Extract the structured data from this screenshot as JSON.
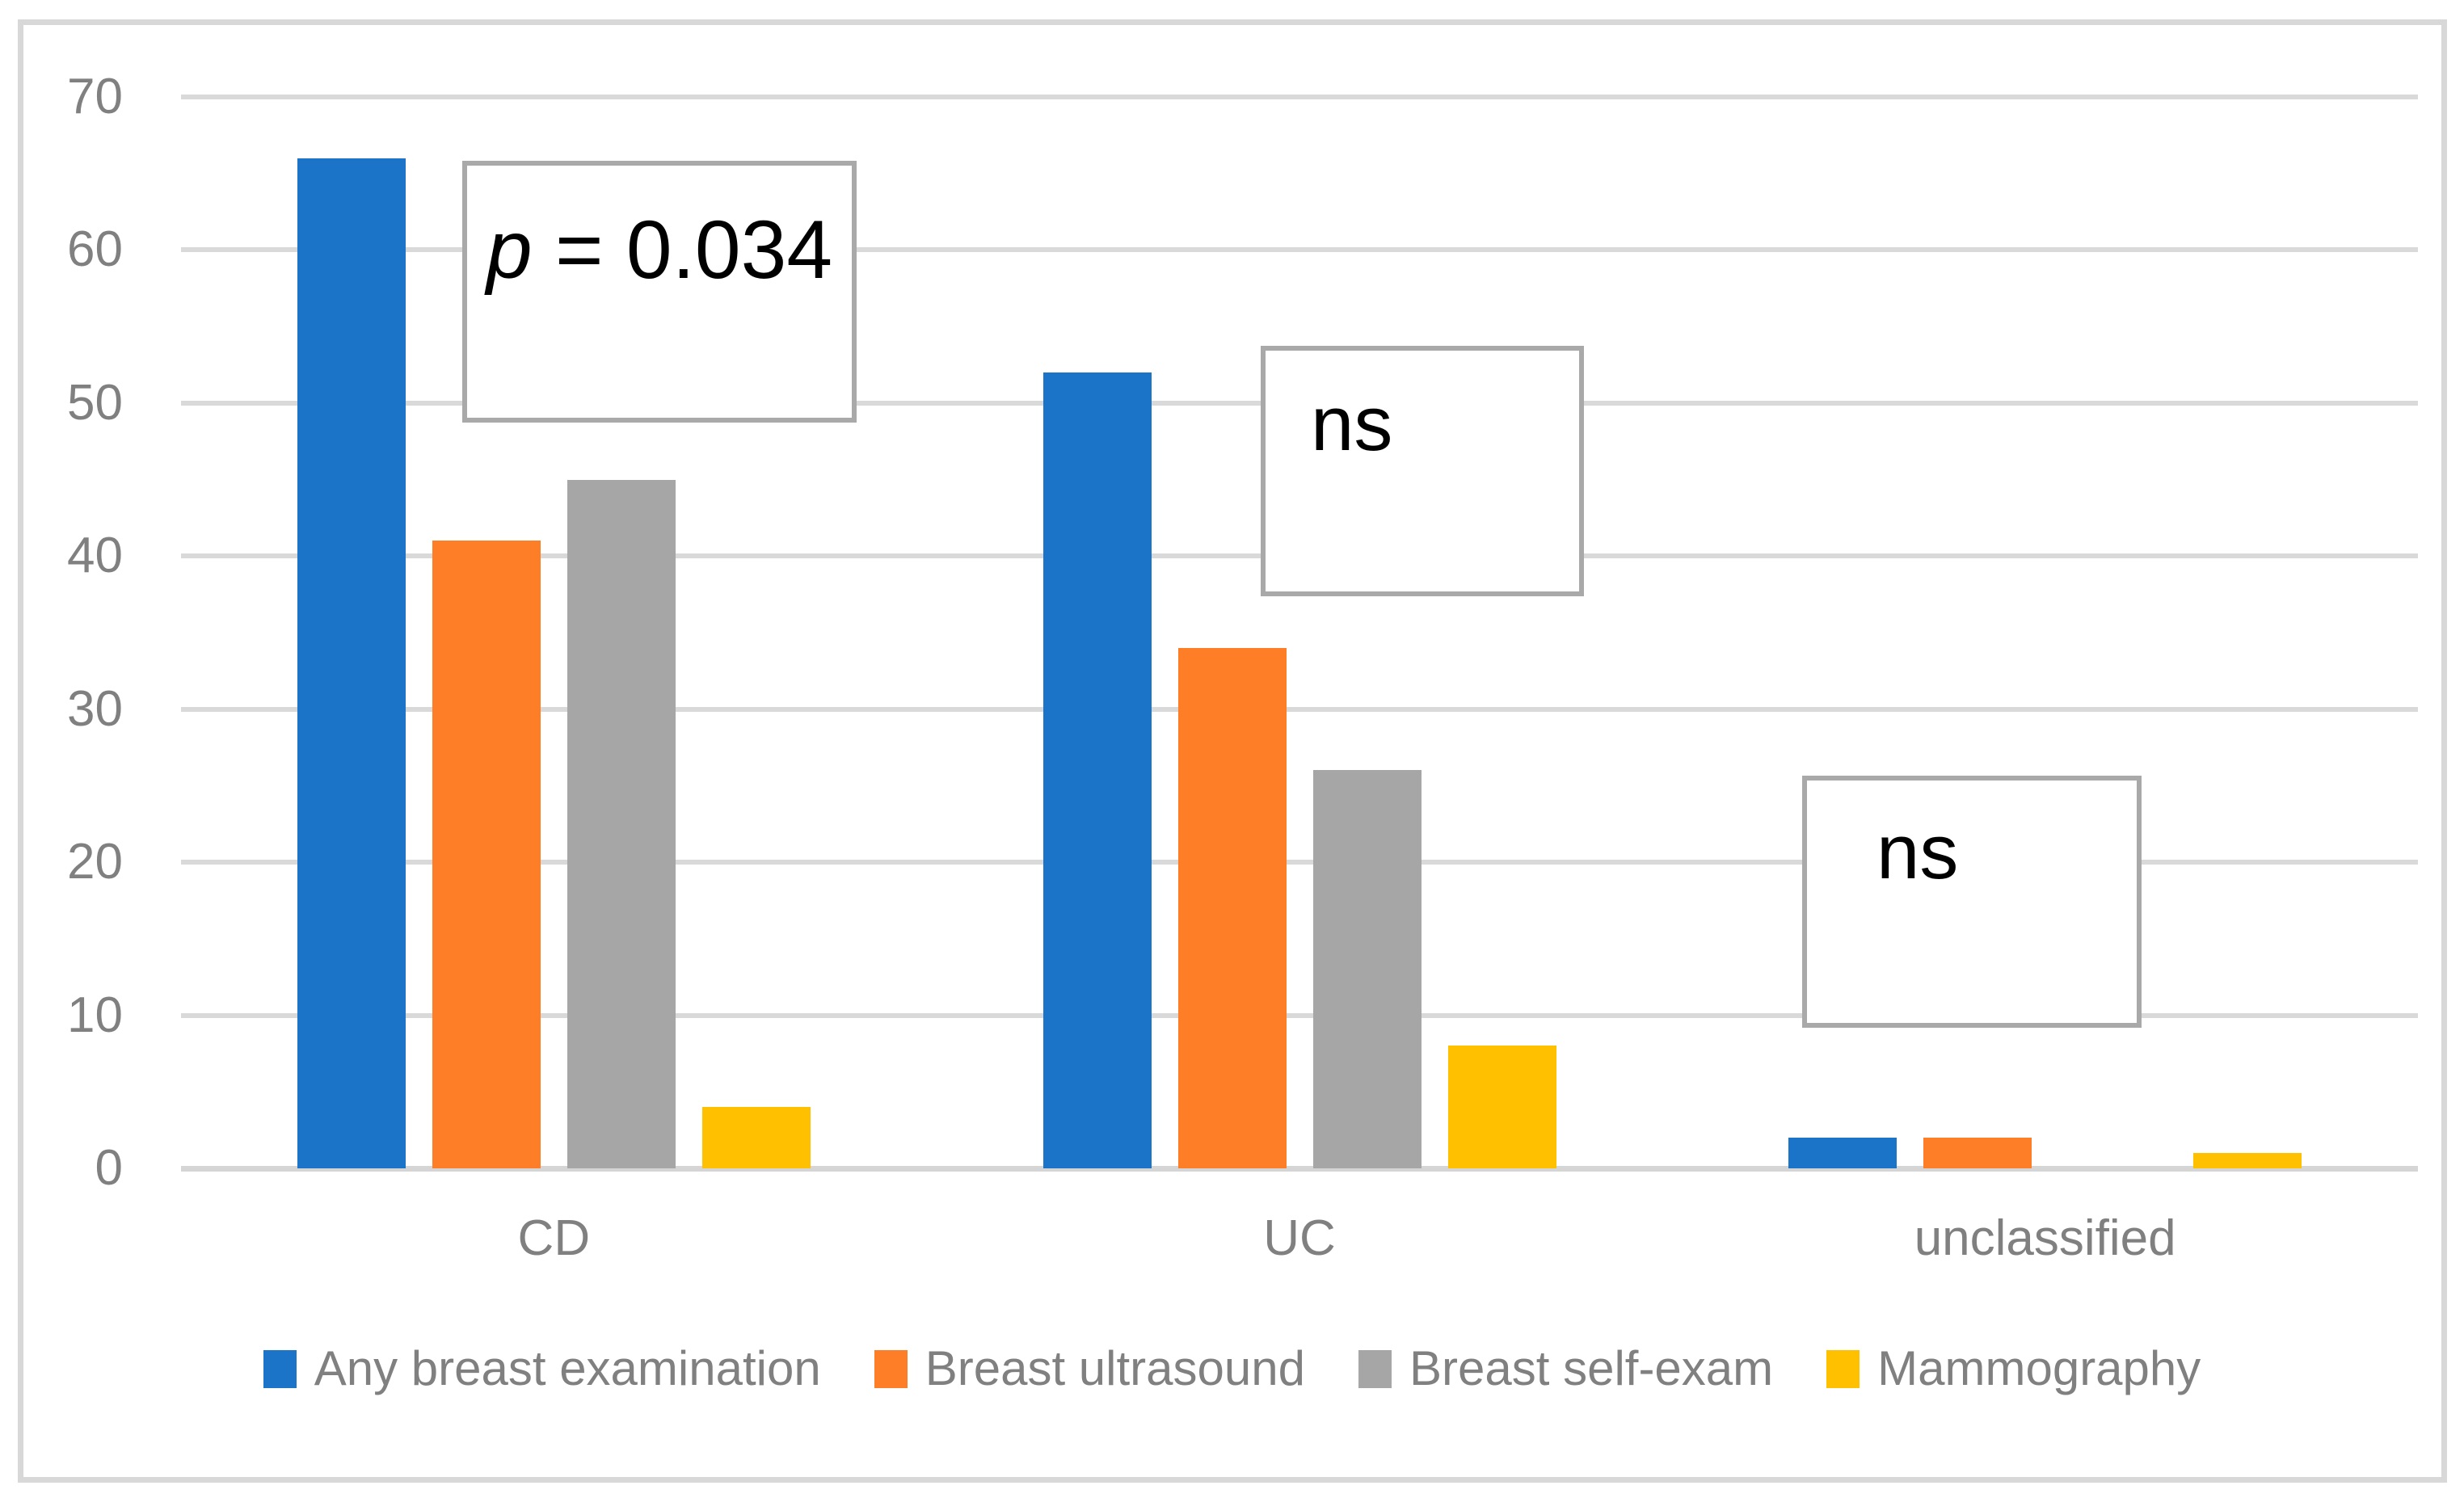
{
  "chart_data": {
    "type": "bar",
    "title": "",
    "xlabel": "",
    "ylabel": "",
    "categories": [
      "CD",
      "UC",
      "unclassified"
    ],
    "series": [
      {
        "name": "Any breast examination",
        "color": "#1b74c8",
        "values": [
          66,
          52,
          2
        ]
      },
      {
        "name": "Breast ultrasound",
        "color": "#fd7e26",
        "values": [
          41,
          34,
          2
        ]
      },
      {
        "name": "Breast self-exam",
        "color": "#a6a6a6",
        "values": [
          45,
          26,
          0
        ]
      },
      {
        "name": "Mammography",
        "color": "#ffc000",
        "values": [
          4,
          8,
          1
        ]
      }
    ],
    "ylim": [
      0,
      70
    ],
    "yticks": [
      0,
      10,
      20,
      30,
      40,
      50,
      60,
      70
    ],
    "grid": true,
    "gridline_color": "#d9d9d9",
    "axis_text_color": "#808080",
    "legend_position": "bottom",
    "annotations": [
      {
        "prefix_italic": "p",
        "text": " = 0.034",
        "category": "CD"
      },
      {
        "prefix_italic": "",
        "text": "ns",
        "category": "UC"
      },
      {
        "prefix_italic": "",
        "text": "ns",
        "category": "unclassified"
      }
    ]
  }
}
